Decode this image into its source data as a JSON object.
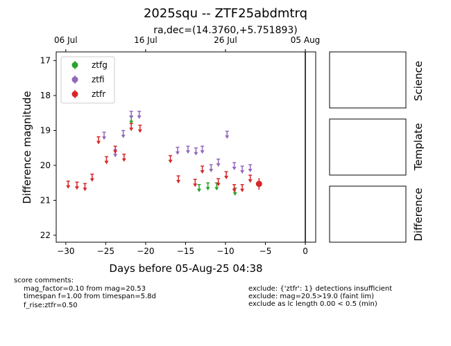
{
  "chart_data": {
    "type": "scatter",
    "title": "2025squ -- ZTF25abdmtrq",
    "subtitle": "ra,dec=(14.3760,+5.751893)",
    "xlabel": "Days before 05-Aug-25 04:38",
    "ylabel": "Difference magnitude",
    "xlim": [
      -31.2,
      1.3
    ],
    "ylim": [
      22.2,
      16.75
    ],
    "y_inverted": true,
    "x_ticks": [
      -30,
      -25,
      -20,
      -15,
      -10,
      -5,
      0
    ],
    "x_tick_labels": [
      "−30",
      "−25",
      "−20",
      "−15",
      "−10",
      "−5",
      "0"
    ],
    "y_ticks": [
      17,
      18,
      19,
      20,
      21,
      22
    ],
    "y_tick_labels": [
      "17",
      "18",
      "19",
      "20",
      "21",
      "22"
    ],
    "top_axis": {
      "ticks": [
        -30,
        -20,
        -10,
        0
      ],
      "labels": [
        "06 Jul",
        "16 Jul",
        "26 Jul",
        "05 Aug"
      ]
    },
    "vline_x": 0,
    "legend_position": "top-left",
    "series": [
      {
        "name": "ztfg",
        "color": "#2ca02c",
        "upper_limits": [
          [
            -21.8,
            18.7
          ],
          [
            -13.3,
            20.65
          ],
          [
            -12.2,
            20.6
          ],
          [
            -11.1,
            20.6
          ],
          [
            -8.8,
            20.75
          ]
        ],
        "detections": []
      },
      {
        "name": "ztfi",
        "color": "#9467bd",
        "upper_limits": [
          [
            -25.2,
            19.15
          ],
          [
            -23.8,
            19.65
          ],
          [
            -22.8,
            19.1
          ],
          [
            -21.8,
            18.55
          ],
          [
            -20.8,
            18.55
          ],
          [
            -16,
            19.58
          ],
          [
            -14.7,
            19.55
          ],
          [
            -13.7,
            19.6
          ],
          [
            -12.9,
            19.55
          ],
          [
            -11.8,
            20.08
          ],
          [
            -10.9,
            19.92
          ],
          [
            -9.8,
            19.12
          ],
          [
            -8.9,
            20.02
          ],
          [
            -7.9,
            20.12
          ],
          [
            -6.9,
            20.08
          ]
        ],
        "detections": []
      },
      {
        "name": "ztfr",
        "color": "#d62728",
        "upper_limits": [
          [
            -29.7,
            20.55
          ],
          [
            -28.6,
            20.58
          ],
          [
            -27.6,
            20.62
          ],
          [
            -26.7,
            20.35
          ],
          [
            -25.9,
            19.28
          ],
          [
            -24.9,
            19.85
          ],
          [
            -23.8,
            19.55
          ],
          [
            -22.7,
            19.78
          ],
          [
            -21.8,
            18.9
          ],
          [
            -20.7,
            18.95
          ],
          [
            -16.9,
            19.82
          ],
          [
            -15.9,
            20.4
          ],
          [
            -13.8,
            20.5
          ],
          [
            -12.9,
            20.12
          ],
          [
            -10.9,
            20.48
          ],
          [
            -9.9,
            20.28
          ],
          [
            -8.9,
            20.65
          ],
          [
            -7.9,
            20.65
          ],
          [
            -6.9,
            20.38
          ]
        ],
        "detections": [
          {
            "x": -5.8,
            "y": 20.53,
            "err": 0.17
          }
        ]
      }
    ]
  },
  "side_panels": [
    "Science",
    "Template",
    "Difference"
  ],
  "comments": {
    "header": "score comments:",
    "left": [
      "mag_factor=0.10 from mag=20.53",
      "timespan f=1.00 from timespan=5.8d",
      "f_rise:ztfr=0.50"
    ],
    "right": [
      "exclude: {'ztfr': 1} detections insufficient",
      "exclude: mag=20.5>19.0 (faint lim)",
      "exclude as lc length 0.00 < 0.5 (min)"
    ]
  }
}
